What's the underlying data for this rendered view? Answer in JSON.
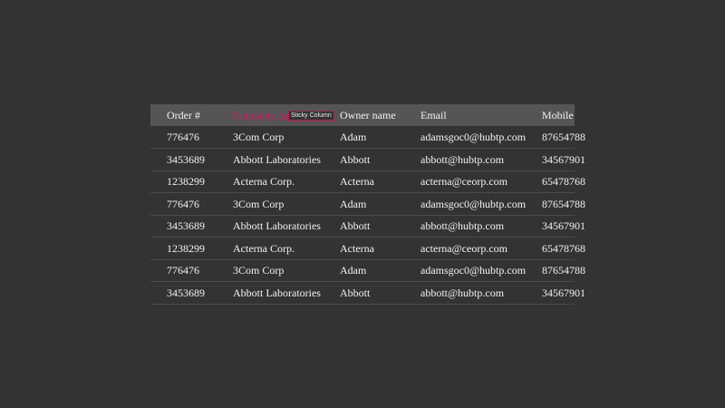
{
  "table": {
    "columns": [
      "Order #",
      "Company name",
      "Owner name",
      "Email",
      "Mobile"
    ],
    "sticky_column": "Company name",
    "rows": [
      [
        "776476",
        "3Com Corp",
        "Adam",
        "adamsgoc0@hubtp.com",
        "87654788"
      ],
      [
        "3453689",
        "Abbott Laboratories",
        "Abbott",
        "abbott@hubtp.com",
        "34567901"
      ],
      [
        "1238299",
        "Acterna Corp.",
        "Acterna",
        "acterna@ceorp.com",
        "65478768"
      ],
      [
        "776476",
        "3Com Corp",
        "Adam",
        "adamsgoc0@hubtp.com",
        "87654788"
      ],
      [
        "3453689",
        "Abbott Laboratories",
        "Abbott",
        "abbott@hubtp.com",
        "34567901"
      ],
      [
        "1238299",
        "Acterna Corp.",
        "Acterna",
        "acterna@ceorp.com",
        "65478768"
      ],
      [
        "776476",
        "3Com Corp",
        "Adam",
        "adamsgoc0@hubtp.com",
        "87654788"
      ],
      [
        "3453689",
        "Abbott Laboratories",
        "Abbott",
        "abbott@hubtp.com",
        "34567901"
      ]
    ]
  },
  "tooltip": {
    "text": "Sticky Column"
  },
  "colors": {
    "accent": "#d81b60",
    "header_bg": "#555555",
    "background": "#333333"
  }
}
